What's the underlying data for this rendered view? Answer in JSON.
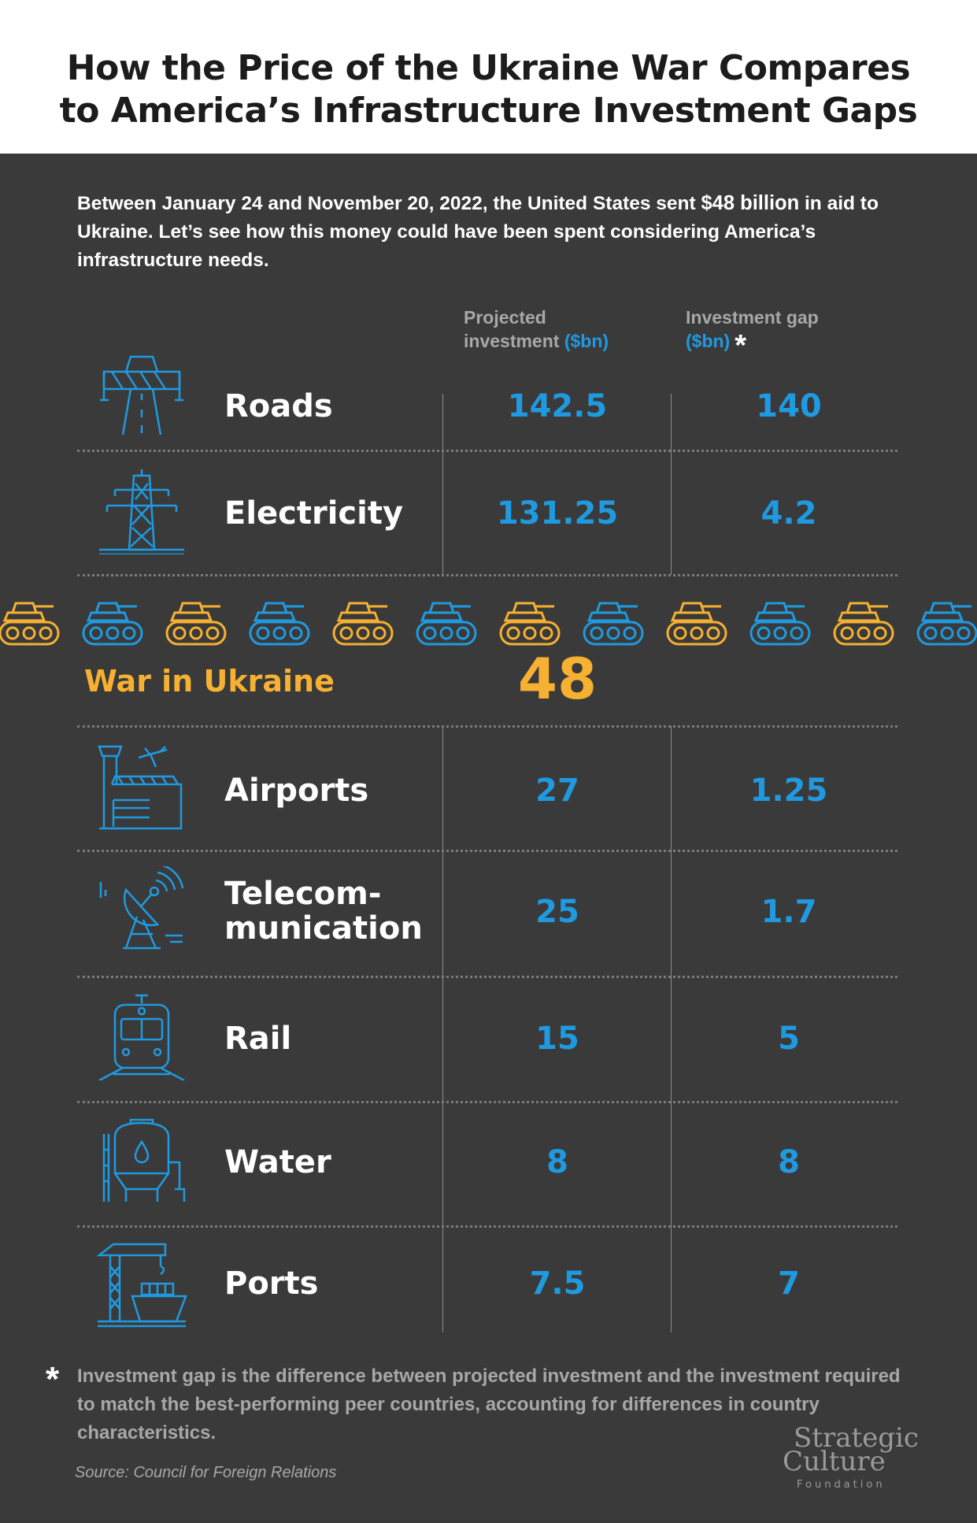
{
  "title": {
    "line1": "How the Price of the Ukraine War Compares",
    "line2": "to America’s Infrastructure Investment Gaps"
  },
  "intro": {
    "before": "Between January 24 and November 20, 2022, the United States sent ",
    "highlight": "$48 billion",
    "after": " in aid to Ukraine. Let’s see how this money could have been spent considering America’s infrastructure needs."
  },
  "columns": {
    "projected_line1": "Projected",
    "projected_line2": "investment",
    "projected_unit": "($bn)",
    "gap_line1": "Investment gap",
    "gap_unit": "($bn)",
    "gap_marker": "*"
  },
  "colors": {
    "background": "#3a3a3a",
    "value_blue": "#1f9ae0",
    "war_yellow": "#f6b132",
    "muted_text": "#a8a8a8"
  },
  "chart_data": {
    "type": "table",
    "title": "How the Price of the Ukraine War Compares to America’s Infrastructure Investment Gaps",
    "columns": [
      "Projected investment ($bn)",
      "Investment gap ($bn)"
    ],
    "rows": [
      {
        "label": "Roads",
        "projected": "142.5",
        "gap": "140",
        "icon": "road-barrier-icon"
      },
      {
        "label": "Electricity",
        "projected": "131.25",
        "gap": "4.2",
        "icon": "power-pylon-icon"
      },
      {
        "label": "Airports",
        "projected": "27",
        "gap": "1.25",
        "icon": "airport-icon"
      },
      {
        "label_line1": "Telecom-",
        "label_line2": "munication",
        "projected": "25",
        "gap": "1.7",
        "icon": "satellite-dish-icon"
      },
      {
        "label": "Rail",
        "projected": "15",
        "gap": "5",
        "icon": "train-icon"
      },
      {
        "label": "Water",
        "projected": "8",
        "gap": "8",
        "icon": "water-tank-icon"
      },
      {
        "label": "Ports",
        "projected": "7.5",
        "gap": "7",
        "icon": "port-crane-icon"
      }
    ],
    "highlight": {
      "label": "War in Ukraine",
      "value": "48",
      "icon": "tank-icon"
    }
  },
  "footnote": {
    "marker": "*",
    "text": "Investment gap is the difference between projected investment and the investment required to match the best-performing peer countries, accounting for differences in country characteristics."
  },
  "source": "Source: Council for Foreign Relations",
  "logo": {
    "line1": "Strategic",
    "line2": "Culture",
    "line3": "Foundation"
  }
}
